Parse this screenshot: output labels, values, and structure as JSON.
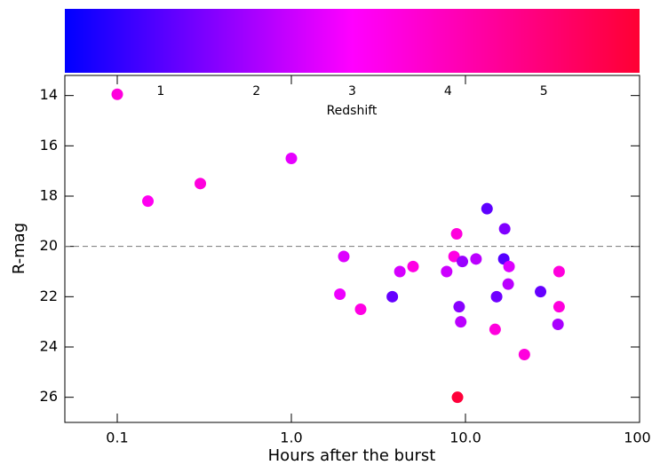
{
  "chart_data": {
    "type": "scatter",
    "x_label": "Hours after the burst",
    "y_label": "R-mag",
    "x": [
      0.1,
      0.15,
      0.3,
      1.0,
      2.0,
      1.9,
      2.5,
      3.8,
      4.2,
      5.0,
      7.8,
      8.6,
      8.9,
      9.2,
      9.4,
      9.6,
      11.5,
      13.3,
      9.0,
      14.8,
      15.1,
      16.6,
      16.8,
      17.6,
      17.8,
      21.8,
      27,
      34.5,
      34.5,
      34
    ],
    "y": [
      13.95,
      18.2,
      17.5,
      16.5,
      20.4,
      21.9,
      22.5,
      22.0,
      21.0,
      20.8,
      21.0,
      20.4,
      19.5,
      22.4,
      23.0,
      20.6,
      20.5,
      18.5,
      26.0,
      23.3,
      22.0,
      20.5,
      19.3,
      21.5,
      20.8,
      24.3,
      21.8,
      21.0,
      22.4,
      23.1
    ],
    "redshift": [
      3.5,
      3.2,
      3.5,
      2.7,
      2.6,
      2.8,
      3.4,
      1.2,
      2.5,
      3.4,
      2.4,
      3.4,
      3.5,
      1.6,
      2.2,
      1.8,
      2.2,
      1.1,
      5.9,
      3.5,
      1.3,
      1.0,
      1.5,
      2.2,
      2.6,
      3.5,
      1.2,
      3.5,
      3.5,
      2.0
    ],
    "xlim": [
      0.05,
      100
    ],
    "x_log": true,
    "xticks": [
      0.1,
      {
        "value": 1,
        "label": "1.0"
      },
      {
        "value": 10,
        "label": "10.0"
      },
      {
        "value": 100,
        "label": "100."
      }
    ],
    "ylim": [
      27,
      13.2
    ],
    "yticks": [
      14,
      16,
      18,
      20,
      22,
      24,
      26
    ],
    "hline": 20,
    "colorbar": {
      "label": "Redshift",
      "lim": [
        0,
        6
      ],
      "ticks": [
        1,
        2,
        3,
        4,
        5
      ],
      "colormap": [
        "#0000ff",
        "#ff00ff",
        "#ff0033"
      ]
    }
  }
}
